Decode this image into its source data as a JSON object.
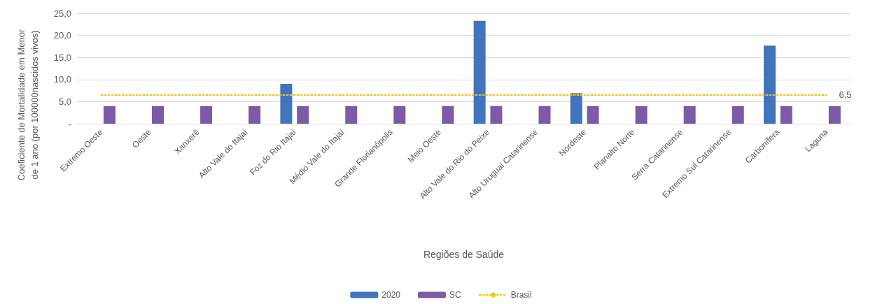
{
  "chart_data": {
    "type": "bar",
    "xlabel": "Regiões de Saúde",
    "ylabel": "Coeficiente de Mortalidade em Menor\nde 1 ano (por 100000nascidos vivos)",
    "categories": [
      "Extremo Oeste",
      "Oeste",
      "Xanxerê",
      "Alto Vale do Itajaí",
      "Foz do Rio Itajaí",
      "Médio Vale do Itajaí",
      "Grande Florianópolis",
      "Meio Oeste",
      "Alto Vale do Rio do Peixe",
      "Alto Uruguai Catarinense",
      "Nordeste",
      "Planalto Norte",
      "Serra Catarinense",
      "Extremo Sul Catarinense",
      "Carbonífera",
      "Laguna"
    ],
    "series": [
      {
        "name": "2020",
        "color": "#4174bd",
        "values": [
          null,
          null,
          null,
          null,
          9.0,
          null,
          null,
          null,
          23.3,
          null,
          6.9,
          null,
          null,
          null,
          17.7,
          null
        ]
      },
      {
        "name": "SC",
        "color": "#7c5ba6",
        "values": [
          4.0,
          4.0,
          4.0,
          4.0,
          4.0,
          4.0,
          4.0,
          4.0,
          4.0,
          4.0,
          4.0,
          4.0,
          4.0,
          4.0,
          4.0,
          4.0
        ]
      },
      {
        "name": "Brasil",
        "type": "line",
        "color": "#f0c419",
        "line_style": "dotted",
        "marker": "none",
        "values": [
          6.5,
          6.5,
          6.5,
          6.5,
          6.5,
          6.5,
          6.5,
          6.5,
          6.5,
          6.5,
          6.5,
          6.5,
          6.5,
          6.5,
          6.5,
          6.5
        ],
        "value_labels": [
          null,
          null,
          null,
          null,
          null,
          null,
          null,
          null,
          null,
          null,
          null,
          null,
          null,
          null,
          null,
          "6,5"
        ]
      }
    ],
    "ylim": [
      0,
      25
    ],
    "yticks": [
      {
        "value": 0,
        "label": "-"
      },
      {
        "value": 5,
        "label": "5,0"
      },
      {
        "value": 10,
        "label": "10,0"
      },
      {
        "value": 15,
        "label": "15,0"
      },
      {
        "value": 20,
        "label": "20,0"
      },
      {
        "value": 25,
        "label": "25,0"
      }
    ],
    "grid": "y",
    "legend": "bottom"
  }
}
